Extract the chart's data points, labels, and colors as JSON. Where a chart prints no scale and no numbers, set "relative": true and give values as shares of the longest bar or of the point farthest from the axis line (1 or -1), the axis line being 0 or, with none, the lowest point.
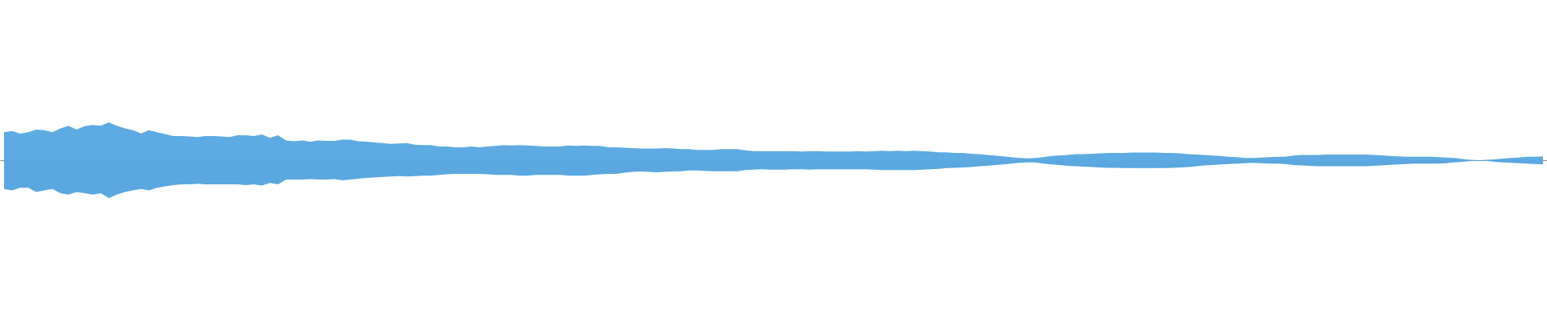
{
  "chart_data": {
    "type": "area",
    "relative": true,
    "categories": [
      null,
      null,
      null,
      null,
      null,
      null,
      null,
      null,
      null,
      null,
      null,
      null,
      null,
      null,
      null,
      null,
      null,
      null,
      null,
      null,
      null,
      null,
      null,
      null,
      null,
      null,
      null,
      null,
      null,
      null,
      null,
      null,
      null,
      null,
      null,
      null,
      null,
      null,
      null,
      null,
      null,
      null,
      null,
      null,
      null,
      null,
      null,
      null,
      null,
      null,
      null,
      null,
      null,
      null,
      null,
      null,
      null,
      null,
      null,
      null,
      null,
      null,
      null,
      null,
      null,
      null,
      null,
      null,
      null,
      null,
      null,
      null,
      null,
      null,
      null,
      null,
      null,
      null,
      null,
      null,
      null,
      null,
      null,
      null,
      null,
      null,
      null,
      null,
      null,
      null,
      null,
      null,
      null,
      null,
      null,
      null,
      null,
      null,
      null,
      null,
      null,
      null,
      null,
      null,
      null,
      null,
      null,
      null,
      null,
      null,
      null,
      null,
      null,
      null,
      null,
      null,
      null,
      null,
      null,
      null,
      null,
      null,
      null,
      null,
      null,
      null,
      null,
      null,
      null,
      null,
      null,
      null,
      null,
      null,
      null,
      null,
      null,
      null,
      null,
      null,
      null,
      null,
      null,
      null,
      null,
      null,
      null,
      null,
      null,
      null,
      null,
      null,
      null,
      null,
      null,
      null,
      null,
      null,
      null,
      null,
      null,
      null,
      null,
      null,
      null,
      null,
      null,
      null,
      null,
      null,
      null,
      null,
      null,
      null,
      null,
      null,
      null,
      null,
      null,
      null,
      null,
      null,
      null,
      null,
      null,
      null,
      null,
      null,
      null,
      null,
      null,
      null
    ],
    "series": [
      {
        "color": "#5dabe2",
        "values": [
          0.74,
          0.77,
          0.7,
          0.74,
          0.81,
          0.79,
          0.74,
          0.84,
          0.91,
          0.81,
          0.9,
          0.93,
          0.91,
          1,
          0.91,
          0.84,
          0.79,
          0.71,
          0.79,
          0.74,
          0.69,
          0.64,
          0.64,
          0.63,
          0.61,
          0.64,
          0.64,
          0.63,
          0.61,
          0.66,
          0.66,
          0.64,
          0.68,
          0.59,
          0.66,
          0.52,
          0.5,
          0.52,
          0.49,
          0.52,
          0.51,
          0.51,
          0.54,
          0.54,
          0.5,
          0.49,
          0.47,
          0.45,
          0.43,
          0.44,
          0.45,
          0.41,
          0.4,
          0.4,
          0.36,
          0.36,
          0.34,
          0.34,
          0.36,
          0.34,
          0.36,
          0.38,
          0.4,
          0.39,
          0.4,
          0.39,
          0.38,
          0.36,
          0.36,
          0.36,
          0.39,
          0.38,
          0.39,
          0.38,
          0.38,
          0.34,
          0.34,
          0.33,
          0.32,
          0.31,
          0.31,
          0.31,
          0.32,
          0.31,
          0.29,
          0.29,
          0.27,
          0.27,
          0.27,
          0.29,
          0.29,
          0.29,
          0.26,
          0.24,
          0.24,
          0.24,
          0.24,
          0.24,
          0.24,
          0.23,
          0.24,
          0.24,
          0.23,
          0.23,
          0.23,
          0.23,
          0.24,
          0.23,
          0.24,
          0.25,
          0.24,
          0.25,
          0.24,
          0.25,
          0.24,
          0.23,
          0.21,
          0.21,
          0.19,
          0.19,
          0.17,
          0.16,
          0.14,
          0.12,
          0.1,
          0.08,
          0.06,
          0.05,
          0.06,
          0.08,
          0.11,
          0.13,
          0.14,
          0.16,
          0.16,
          0.17,
          0.18,
          0.19,
          0.19,
          0.19,
          0.2,
          0.2,
          0.2,
          0.2,
          0.19,
          0.19,
          0.18,
          0.16,
          0.15,
          0.14,
          0.12,
          0.11,
          0.09,
          0.08,
          0.06,
          0.06,
          0.07,
          0.08,
          0.09,
          0.09,
          0.12,
          0.14,
          0.14,
          0.14,
          0.15,
          0.15,
          0.15,
          0.15,
          0.15,
          0.15,
          0.14,
          0.13,
          0.11,
          0.1,
          0.09,
          0.09,
          0.09,
          0.09,
          0.08,
          0.07,
          0.06,
          0.03,
          0.01,
          0,
          0.01,
          0.02,
          0.04,
          0.06,
          0.07,
          0.09,
          0.09,
          0.1
        ]
      },
      {
        "color": "#5aa8df",
        "values": [
          -0.76,
          -0.8,
          -0.73,
          -0.73,
          -0.84,
          -0.8,
          -0.76,
          -0.87,
          -0.91,
          -0.84,
          -0.87,
          -0.91,
          -0.87,
          -1,
          -0.91,
          -0.84,
          -0.8,
          -0.76,
          -0.8,
          -0.73,
          -0.69,
          -0.66,
          -0.64,
          -0.64,
          -0.62,
          -0.64,
          -0.64,
          -0.64,
          -0.64,
          -0.64,
          -0.66,
          -0.64,
          -0.67,
          -0.6,
          -0.64,
          -0.51,
          -0.51,
          -0.51,
          -0.5,
          -0.51,
          -0.51,
          -0.5,
          -0.53,
          -0.51,
          -0.49,
          -0.47,
          -0.46,
          -0.44,
          -0.43,
          -0.42,
          -0.43,
          -0.42,
          -0.41,
          -0.41,
          -0.39,
          -0.37,
          -0.36,
          -0.36,
          -0.36,
          -0.36,
          -0.37,
          -0.39,
          -0.39,
          -0.39,
          -0.41,
          -0.41,
          -0.39,
          -0.39,
          -0.39,
          -0.39,
          -0.41,
          -0.41,
          -0.41,
          -0.39,
          -0.37,
          -0.36,
          -0.36,
          -0.33,
          -0.31,
          -0.3,
          -0.31,
          -0.32,
          -0.31,
          -0.3,
          -0.29,
          -0.27,
          -0.27,
          -0.28,
          -0.29,
          -0.29,
          -0.29,
          -0.29,
          -0.26,
          -0.25,
          -0.24,
          -0.25,
          -0.25,
          -0.25,
          -0.24,
          -0.24,
          -0.25,
          -0.24,
          -0.24,
          -0.24,
          -0.24,
          -0.24,
          -0.24,
          -0.24,
          -0.25,
          -0.26,
          -0.26,
          -0.26,
          -0.26,
          -0.26,
          -0.25,
          -0.24,
          -0.23,
          -0.21,
          -0.2,
          -0.19,
          -0.18,
          -0.16,
          -0.15,
          -0.13,
          -0.11,
          -0.09,
          -0.07,
          -0.06,
          -0.06,
          -0.09,
          -0.11,
          -0.13,
          -0.15,
          -0.16,
          -0.17,
          -0.18,
          -0.19,
          -0.2,
          -0.2,
          -0.21,
          -0.21,
          -0.21,
          -0.21,
          -0.21,
          -0.21,
          -0.2,
          -0.19,
          -0.18,
          -0.16,
          -0.14,
          -0.13,
          -0.11,
          -0.1,
          -0.09,
          -0.08,
          -0.07,
          -0.08,
          -0.09,
          -0.09,
          -0.1,
          -0.13,
          -0.14,
          -0.15,
          -0.16,
          -0.16,
          -0.16,
          -0.16,
          -0.16,
          -0.16,
          -0.16,
          -0.15,
          -0.14,
          -0.12,
          -0.11,
          -0.1,
          -0.09,
          -0.09,
          -0.09,
          -0.09,
          -0.08,
          -0.06,
          -0.04,
          -0.02,
          -0.01,
          -0.02,
          -0.04,
          -0.06,
          -0.07,
          -0.08,
          -0.09,
          -0.1,
          -0.11
        ]
      }
    ]
  }
}
